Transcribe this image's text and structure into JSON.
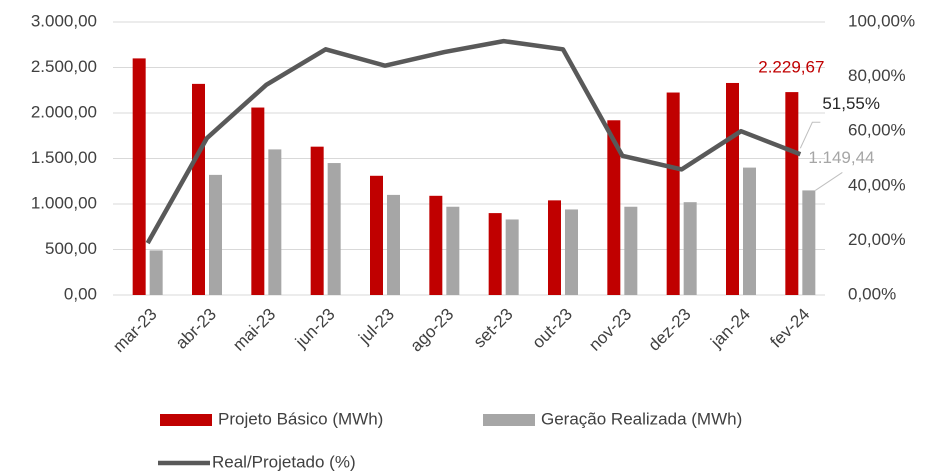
{
  "chart_data": {
    "type": "bar",
    "categories": [
      "mar-23",
      "abr-23",
      "mai-23",
      "jun-23",
      "jul-23",
      "ago-23",
      "set-23",
      "out-23",
      "nov-23",
      "dez-23",
      "jan-24",
      "fev-24"
    ],
    "series": [
      {
        "name": "Projeto Básico (MWh)",
        "color": "#c00000",
        "type": "bar",
        "values": [
          2600,
          2320,
          2060,
          1630,
          1310,
          1090,
          900,
          1040,
          1920,
          2225,
          2330,
          2229.67
        ],
        "value_labels": [
          null,
          null,
          null,
          null,
          null,
          null,
          null,
          null,
          null,
          null,
          null,
          "2.229,67"
        ]
      },
      {
        "name": "Geração Realizada (MWh)",
        "color": "#a6a6a6",
        "type": "bar",
        "values": [
          490,
          1320,
          1600,
          1450,
          1100,
          970,
          830,
          940,
          970,
          1020,
          1400,
          1149.44
        ],
        "value_labels": [
          null,
          null,
          null,
          null,
          null,
          null,
          null,
          null,
          null,
          null,
          null,
          "1.149,44"
        ]
      },
      {
        "name": "Real/Projetado (%)",
        "color": "#595959",
        "type": "line",
        "axis": "y2",
        "values": [
          19,
          57.5,
          77,
          90,
          84,
          89,
          93,
          90,
          51,
          46,
          60,
          51.55
        ],
        "value_labels": [
          null,
          null,
          null,
          null,
          null,
          null,
          null,
          null,
          null,
          null,
          null,
          "51,55%"
        ]
      }
    ],
    "ylim": [
      0,
      3000
    ],
    "yticks": [
      {
        "value": 0,
        "label": "0,00"
      },
      {
        "value": 500,
        "label": "500,00"
      },
      {
        "value": 1000,
        "label": "1.000,00"
      },
      {
        "value": 1500,
        "label": "1.500,00"
      },
      {
        "value": 2000,
        "label": "2.000,00"
      },
      {
        "value": 2500,
        "label": "2.500,00"
      },
      {
        "value": 3000,
        "label": "3.000,00"
      }
    ],
    "y2lim": [
      0,
      100
    ],
    "y2ticks": [
      {
        "value": 0,
        "label": "0,00%"
      },
      {
        "value": 20,
        "label": "20,00%"
      },
      {
        "value": 40,
        "label": "40,00%"
      },
      {
        "value": 60,
        "label": "60,00%"
      },
      {
        "value": 80,
        "label": "80,00%"
      },
      {
        "value": 100,
        "label": "100,00%"
      }
    ],
    "grid": true,
    "legend": "bottom"
  }
}
